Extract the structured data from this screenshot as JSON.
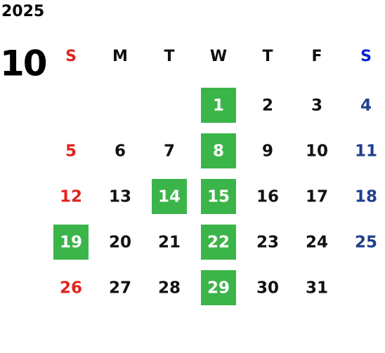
{
  "calendar": {
    "year": "2025",
    "month": "10",
    "weekdays": [
      "S",
      "M",
      "T",
      "W",
      "T",
      "F",
      "S"
    ],
    "weeks": [
      [
        null,
        null,
        null,
        {
          "day": "1",
          "highlighted": true
        },
        {
          "day": "2",
          "highlighted": false
        },
        {
          "day": "3",
          "highlighted": false
        },
        {
          "day": "4",
          "highlighted": false
        }
      ],
      [
        {
          "day": "5",
          "highlighted": false
        },
        {
          "day": "6",
          "highlighted": false
        },
        {
          "day": "7",
          "highlighted": false
        },
        {
          "day": "8",
          "highlighted": true
        },
        {
          "day": "9",
          "highlighted": false
        },
        {
          "day": "10",
          "highlighted": false
        },
        {
          "day": "11",
          "highlighted": false
        }
      ],
      [
        {
          "day": "12",
          "highlighted": false
        },
        {
          "day": "13",
          "highlighted": false
        },
        {
          "day": "14",
          "highlighted": true
        },
        {
          "day": "15",
          "highlighted": true
        },
        {
          "day": "16",
          "highlighted": false
        },
        {
          "day": "17",
          "highlighted": false
        },
        {
          "day": "18",
          "highlighted": false
        }
      ],
      [
        {
          "day": "19",
          "highlighted": true
        },
        {
          "day": "20",
          "highlighted": false
        },
        {
          "day": "21",
          "highlighted": false
        },
        {
          "day": "22",
          "highlighted": true
        },
        {
          "day": "23",
          "highlighted": false
        },
        {
          "day": "24",
          "highlighted": false
        },
        {
          "day": "25",
          "highlighted": false
        }
      ],
      [
        {
          "day": "26",
          "highlighted": false
        },
        {
          "day": "27",
          "highlighted": false
        },
        {
          "day": "28",
          "highlighted": false
        },
        {
          "day": "29",
          "highlighted": true
        },
        {
          "day": "30",
          "highlighted": false
        },
        {
          "day": "31",
          "highlighted": false
        },
        null
      ]
    ]
  }
}
